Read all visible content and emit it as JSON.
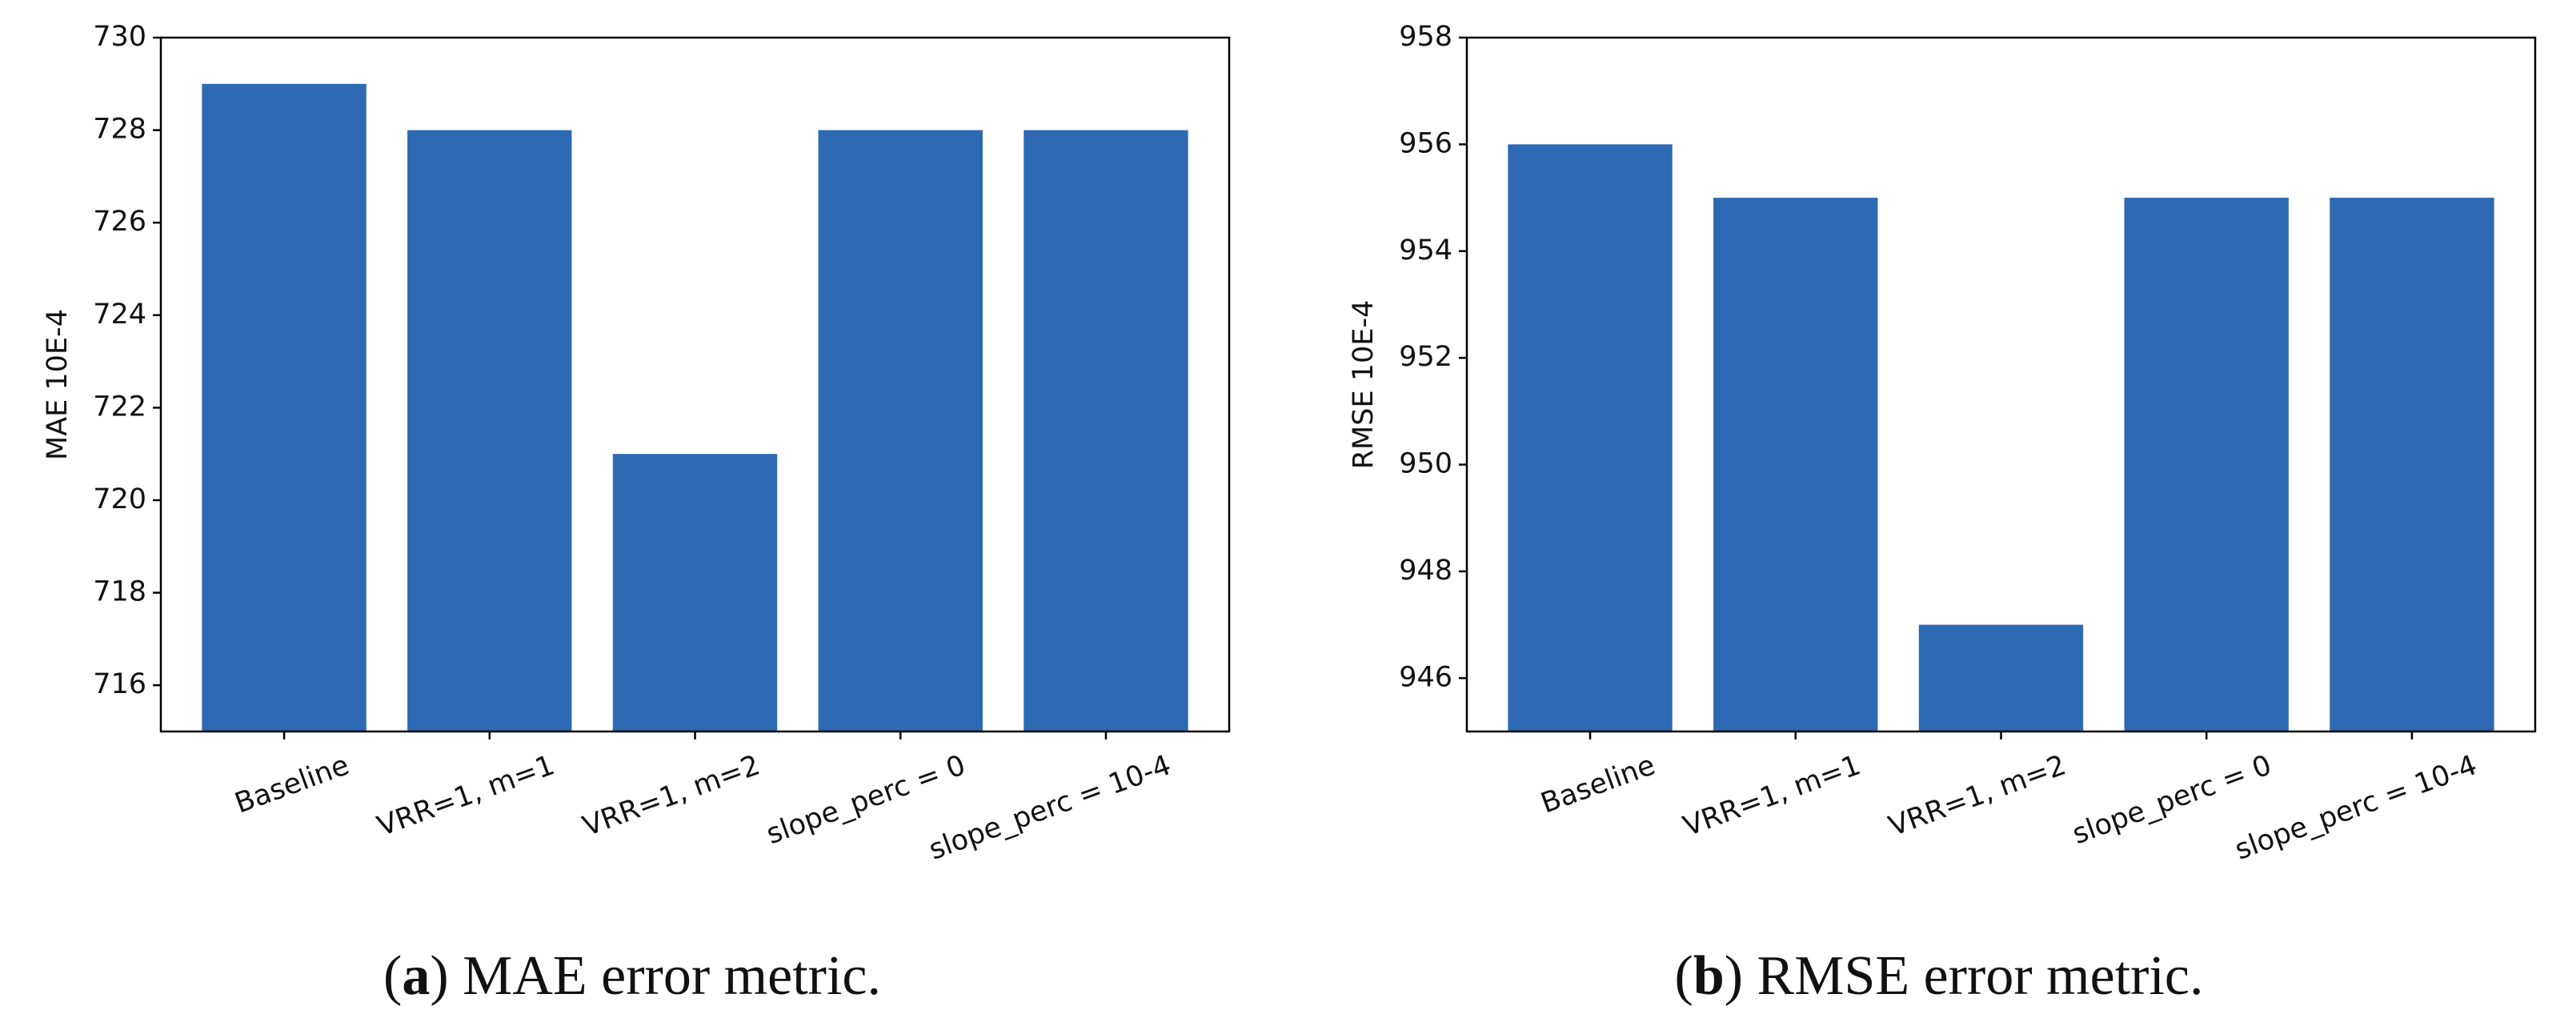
{
  "chart_data": [
    {
      "type": "bar",
      "ylabel": "MAE 10E-4",
      "categories": [
        "Baseline",
        "VRR=1, m=1",
        "VRR=1, m=2",
        "slope_perc = 0",
        "slope_perc = 10-4"
      ],
      "values": [
        729,
        728,
        721,
        728,
        728
      ],
      "color": "#2e6ab3",
      "ylim": [
        715,
        730
      ],
      "yticks": [
        716,
        718,
        720,
        722,
        724,
        726,
        728,
        730
      ],
      "caption": [
        "(",
        "a",
        ") MAE error metric."
      ]
    },
    {
      "type": "bar",
      "ylabel": "RMSE 10E-4",
      "categories": [
        "Baseline",
        "VRR=1, m=1",
        "VRR=1, m=2",
        "slope_perc = 0",
        "slope_perc = 10-4"
      ],
      "values": [
        956,
        955,
        947,
        955,
        955
      ],
      "color": "#2e6ab3",
      "ylim": [
        945,
        958
      ],
      "yticks": [
        946,
        948,
        950,
        952,
        954,
        956,
        958
      ],
      "caption": [
        "(",
        "b",
        ") RMSE error metric."
      ]
    }
  ]
}
